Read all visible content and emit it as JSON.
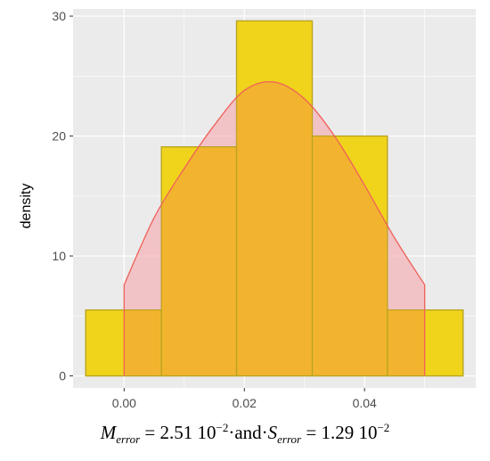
{
  "chart_data": {
    "type": "bar",
    "title": "",
    "xlabel": "",
    "ylabel": "density",
    "xlim": [
      -0.0085,
      0.0585
    ],
    "ylim": [
      -1.0,
      30.6
    ],
    "x_ticks": [
      "0.00",
      "0.02",
      "0.04"
    ],
    "x_tick_values": [
      0.0,
      0.02,
      0.04
    ],
    "y_ticks": [
      "0",
      "10",
      "20",
      "30"
    ],
    "y_tick_values": [
      0,
      10,
      20,
      30
    ],
    "grid": true,
    "histogram": {
      "bins": [
        {
          "x0": -0.0064,
          "x1": 0.0062,
          "density": 5.5
        },
        {
          "x0": 0.0062,
          "x1": 0.0187,
          "density": 19.1
        },
        {
          "x0": 0.0187,
          "x1": 0.0313,
          "density": 29.6
        },
        {
          "x0": 0.0313,
          "x1": 0.0438,
          "density": 20.0
        },
        {
          "x0": 0.0438,
          "x1": 0.0564,
          "density": 5.5
        }
      ],
      "fill": "#f0d41c",
      "stroke": "#b8a420"
    },
    "density_curve": {
      "x": [
        0.0,
        0.005,
        0.01,
        0.015,
        0.02,
        0.025,
        0.03,
        0.035,
        0.04,
        0.045,
        0.05
      ],
      "y": [
        7.6,
        13.2,
        17.3,
        20.9,
        23.8,
        24.5,
        23.1,
        20.0,
        15.9,
        11.5,
        7.6
      ],
      "line_color": "#f0605a",
      "fill": "#f5a0a8"
    },
    "panel_background": "#ebebeb",
    "overlap_color": "#f2b42e"
  },
  "caption": {
    "m_symbol": "M",
    "m_subscript": "error",
    "m_value": "= 2.51 10",
    "m_exponent": "−2",
    "connector": "·and·",
    "s_symbol": "S",
    "s_subscript": "error",
    "s_value": "= 1.29 10",
    "s_exponent": "−2"
  }
}
